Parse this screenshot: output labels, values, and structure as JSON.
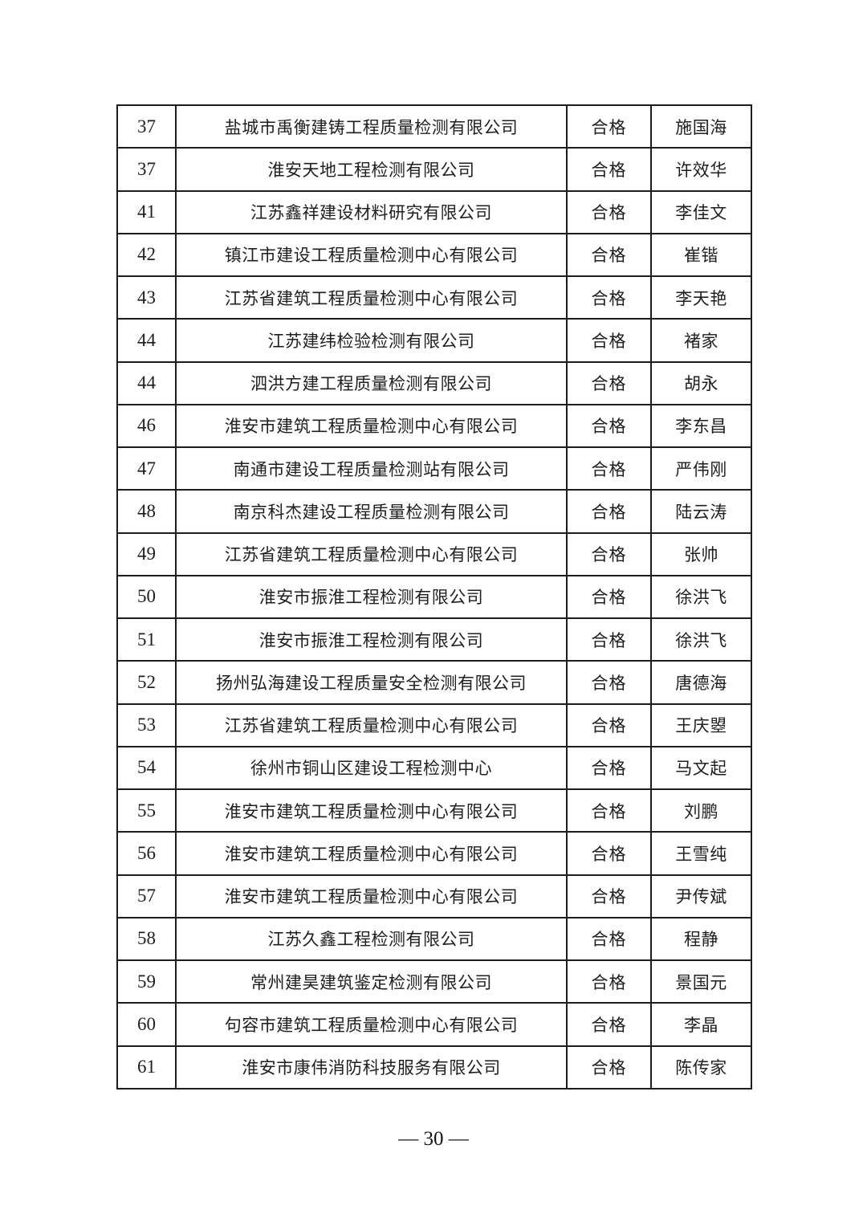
{
  "table": {
    "result_label": "合格",
    "rows": [
      {
        "no": "37",
        "company": "盐城市禹衡建铸工程质量检测有限公司",
        "result": "合格",
        "person": "施国海"
      },
      {
        "no": "37",
        "company": "淮安天地工程检测有限公司",
        "result": "合格",
        "person": "许效华"
      },
      {
        "no": "41",
        "company": "江苏鑫祥建设材料研究有限公司",
        "result": "合格",
        "person": "李佳文"
      },
      {
        "no": "42",
        "company": "镇江市建设工程质量检测中心有限公司",
        "result": "合格",
        "person": "崔锴"
      },
      {
        "no": "43",
        "company": "江苏省建筑工程质量检测中心有限公司",
        "result": "合格",
        "person": "李天艳"
      },
      {
        "no": "44",
        "company": "江苏建纬检验检测有限公司",
        "result": "合格",
        "person": "褚家"
      },
      {
        "no": "44",
        "company": "泗洪方建工程质量检测有限公司",
        "result": "合格",
        "person": "胡永"
      },
      {
        "no": "46",
        "company": "淮安市建筑工程质量检测中心有限公司",
        "result": "合格",
        "person": "李东昌"
      },
      {
        "no": "47",
        "company": "南通市建设工程质量检测站有限公司",
        "result": "合格",
        "person": "严伟刚"
      },
      {
        "no": "48",
        "company": "南京科杰建设工程质量检测有限公司",
        "result": "合格",
        "person": "陆云涛"
      },
      {
        "no": "49",
        "company": "江苏省建筑工程质量检测中心有限公司",
        "result": "合格",
        "person": "张帅"
      },
      {
        "no": "50",
        "company": "淮安市振淮工程检测有限公司",
        "result": "合格",
        "person": "徐洪飞"
      },
      {
        "no": "51",
        "company": "淮安市振淮工程检测有限公司",
        "result": "合格",
        "person": "徐洪飞"
      },
      {
        "no": "52",
        "company": "扬州弘海建设工程质量安全检测有限公司",
        "result": "合格",
        "person": "唐德海"
      },
      {
        "no": "53",
        "company": "江苏省建筑工程质量检测中心有限公司",
        "result": "合格",
        "person": "王庆曌"
      },
      {
        "no": "54",
        "company": "徐州市铜山区建设工程检测中心",
        "result": "合格",
        "person": "马文起"
      },
      {
        "no": "55",
        "company": "淮安市建筑工程质量检测中心有限公司",
        "result": "合格",
        "person": "刘鹏"
      },
      {
        "no": "56",
        "company": "淮安市建筑工程质量检测中心有限公司",
        "result": "合格",
        "person": "王雪纯"
      },
      {
        "no": "57",
        "company": "淮安市建筑工程质量检测中心有限公司",
        "result": "合格",
        "person": "尹传斌"
      },
      {
        "no": "58",
        "company": "江苏久鑫工程检测有限公司",
        "result": "合格",
        "person": "程静"
      },
      {
        "no": "59",
        "company": "常州建昊建筑鉴定检测有限公司",
        "result": "合格",
        "person": "景国元"
      },
      {
        "no": "60",
        "company": "句容市建筑工程质量检测中心有限公司",
        "result": "合格",
        "person": "李晶"
      },
      {
        "no": "61",
        "company": "淮安市康伟消防科技服务有限公司",
        "result": "合格",
        "person": "陈传家"
      }
    ]
  },
  "footer": {
    "page_number": "— 30 —"
  },
  "colors": {
    "border": "#1d1d1d",
    "text": "#1e1e1e",
    "background": "#ffffff"
  }
}
